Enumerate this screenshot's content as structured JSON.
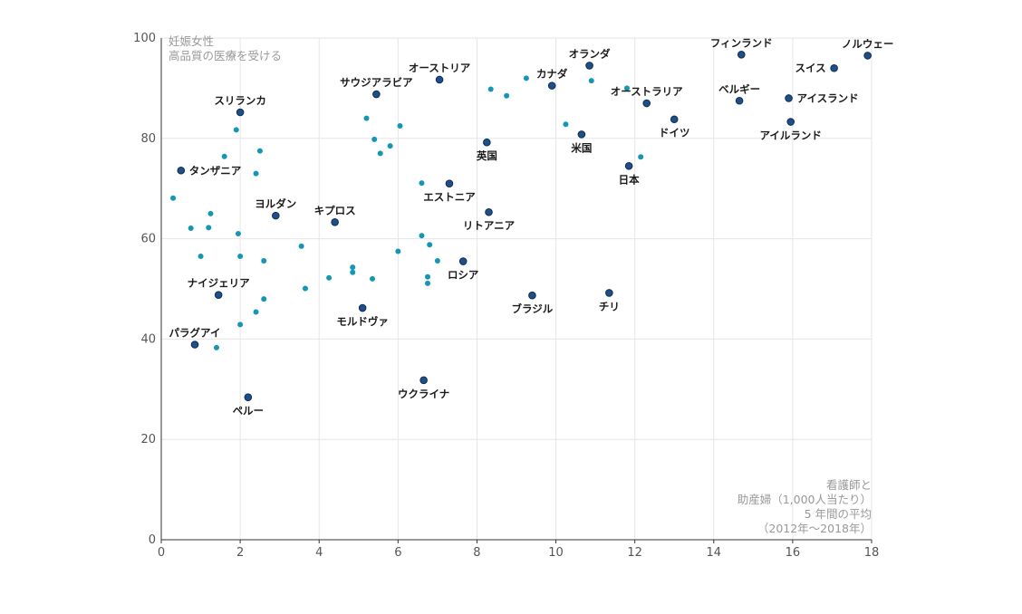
{
  "chart_data": {
    "type": "scatter",
    "ylabel": [
      "妊娠女性",
      "高品質の医療を受ける"
    ],
    "xlabel": [
      "看護師と",
      "助産婦（1,000人当たり）",
      "5 年間の平均",
      "（2012年〜2018年）"
    ],
    "xlim": [
      0,
      18
    ],
    "ylim": [
      0,
      100
    ],
    "xticks": [
      0,
      2,
      4,
      6,
      8,
      10,
      12,
      14,
      16,
      18
    ],
    "yticks": [
      0,
      20,
      40,
      60,
      80,
      100
    ],
    "grid": true,
    "colors": {
      "labeled": "#1e4f86",
      "labeled_stroke": "#0d2c52",
      "unlabeled": "#1496b4"
    },
    "labeled_points": [
      {
        "name": "ノルウェー",
        "x": 17.9,
        "y": 96.5,
        "pos": "above"
      },
      {
        "name": "フィンランド",
        "x": 14.7,
        "y": 96.7,
        "pos": "above"
      },
      {
        "name": "スイス",
        "x": 17.05,
        "y": 94.0,
        "pos": "left"
      },
      {
        "name": "オランダ",
        "x": 10.85,
        "y": 94.5,
        "pos": "above"
      },
      {
        "name": "オーストリア",
        "x": 7.05,
        "y": 91.7,
        "pos": "above"
      },
      {
        "name": "カナダ",
        "x": 9.9,
        "y": 90.5,
        "pos": "above"
      },
      {
        "name": "サウジアラビア",
        "x": 5.45,
        "y": 88.8,
        "pos": "above"
      },
      {
        "name": "ベルギー",
        "x": 14.65,
        "y": 87.5,
        "pos": "above"
      },
      {
        "name": "アイスランド",
        "x": 15.9,
        "y": 88.0,
        "pos": "right"
      },
      {
        "name": "オーストラリア",
        "x": 12.3,
        "y": 87.0,
        "pos": "above"
      },
      {
        "name": "スリランカ",
        "x": 2.0,
        "y": 85.2,
        "pos": "above"
      },
      {
        "name": "ドイツ",
        "x": 13.0,
        "y": 83.8,
        "pos": "below"
      },
      {
        "name": "アイルランド",
        "x": 15.95,
        "y": 83.3,
        "pos": "below"
      },
      {
        "name": "米国",
        "x": 10.65,
        "y": 80.8,
        "pos": "below"
      },
      {
        "name": "英国",
        "x": 8.25,
        "y": 79.2,
        "pos": "below"
      },
      {
        "name": "タンザニア",
        "x": 0.5,
        "y": 73.6,
        "pos": "right"
      },
      {
        "name": "日本",
        "x": 11.85,
        "y": 74.5,
        "pos": "below"
      },
      {
        "name": "エストニア",
        "x": 7.3,
        "y": 71.0,
        "pos": "below"
      },
      {
        "name": "ヨルダン",
        "x": 2.9,
        "y": 64.6,
        "pos": "above"
      },
      {
        "name": "キプロス",
        "x": 4.4,
        "y": 63.3,
        "pos": "above"
      },
      {
        "name": "リトアニア",
        "x": 8.3,
        "y": 65.3,
        "pos": "below"
      },
      {
        "name": "ロシア",
        "x": 7.65,
        "y": 55.5,
        "pos": "below"
      },
      {
        "name": "ナイジェリア",
        "x": 1.45,
        "y": 48.8,
        "pos": "above"
      },
      {
        "name": "ブラジル",
        "x": 9.4,
        "y": 48.7,
        "pos": "below"
      },
      {
        "name": "チリ",
        "x": 11.35,
        "y": 49.2,
        "pos": "below"
      },
      {
        "name": "モルドヴァ",
        "x": 5.1,
        "y": 46.2,
        "pos": "below"
      },
      {
        "name": "パラグアイ",
        "x": 0.85,
        "y": 38.9,
        "pos": "above"
      },
      {
        "name": "ウクライナ",
        "x": 6.65,
        "y": 31.8,
        "pos": "below"
      },
      {
        "name": "ペルー",
        "x": 2.2,
        "y": 28.4,
        "pos": "below"
      }
    ],
    "unlabeled_points": [
      [
        0.3,
        68.1
      ],
      [
        0.75,
        62.1
      ],
      [
        1.0,
        56.5
      ],
      [
        1.2,
        62.2
      ],
      [
        1.25,
        65.0
      ],
      [
        1.4,
        38.3
      ],
      [
        1.6,
        76.4
      ],
      [
        1.9,
        81.7
      ],
      [
        1.95,
        61.0
      ],
      [
        2.0,
        42.9
      ],
      [
        2.0,
        56.5
      ],
      [
        2.4,
        73.0
      ],
      [
        2.4,
        45.4
      ],
      [
        2.5,
        77.5
      ],
      [
        2.6,
        55.6
      ],
      [
        2.6,
        48.0
      ],
      [
        3.55,
        58.5
      ],
      [
        3.65,
        50.1
      ],
      [
        4.25,
        52.2
      ],
      [
        4.85,
        53.3
      ],
      [
        4.85,
        54.3
      ],
      [
        5.2,
        84.0
      ],
      [
        5.35,
        52.0
      ],
      [
        5.4,
        79.8
      ],
      [
        5.55,
        77.0
      ],
      [
        5.8,
        78.5
      ],
      [
        6.0,
        57.5
      ],
      [
        6.05,
        82.5
      ],
      [
        6.6,
        60.6
      ],
      [
        6.6,
        71.1
      ],
      [
        6.75,
        52.4
      ],
      [
        6.75,
        51.1
      ],
      [
        6.8,
        58.8
      ],
      [
        7.0,
        55.6
      ],
      [
        8.35,
        89.8
      ],
      [
        8.75,
        88.5
      ],
      [
        9.25,
        92.0
      ],
      [
        10.25,
        82.8
      ],
      [
        10.9,
        91.5
      ],
      [
        11.8,
        90.0
      ],
      [
        12.15,
        76.3
      ]
    ]
  }
}
